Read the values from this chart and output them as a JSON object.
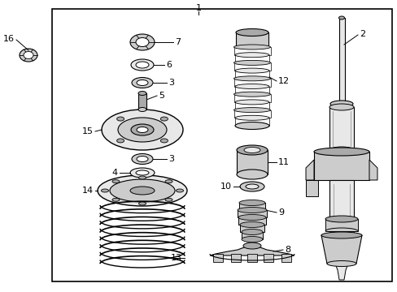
{
  "background_color": "#ffffff",
  "line_color": "#000000",
  "figsize": [
    4.89,
    3.6
  ],
  "dpi": 100,
  "border": [
    0.13,
    0.03,
    0.985,
    0.965
  ],
  "gray_light": "#e8e8e8",
  "gray_mid": "#cccccc",
  "gray_dark": "#aaaaaa",
  "gray_darker": "#888888"
}
